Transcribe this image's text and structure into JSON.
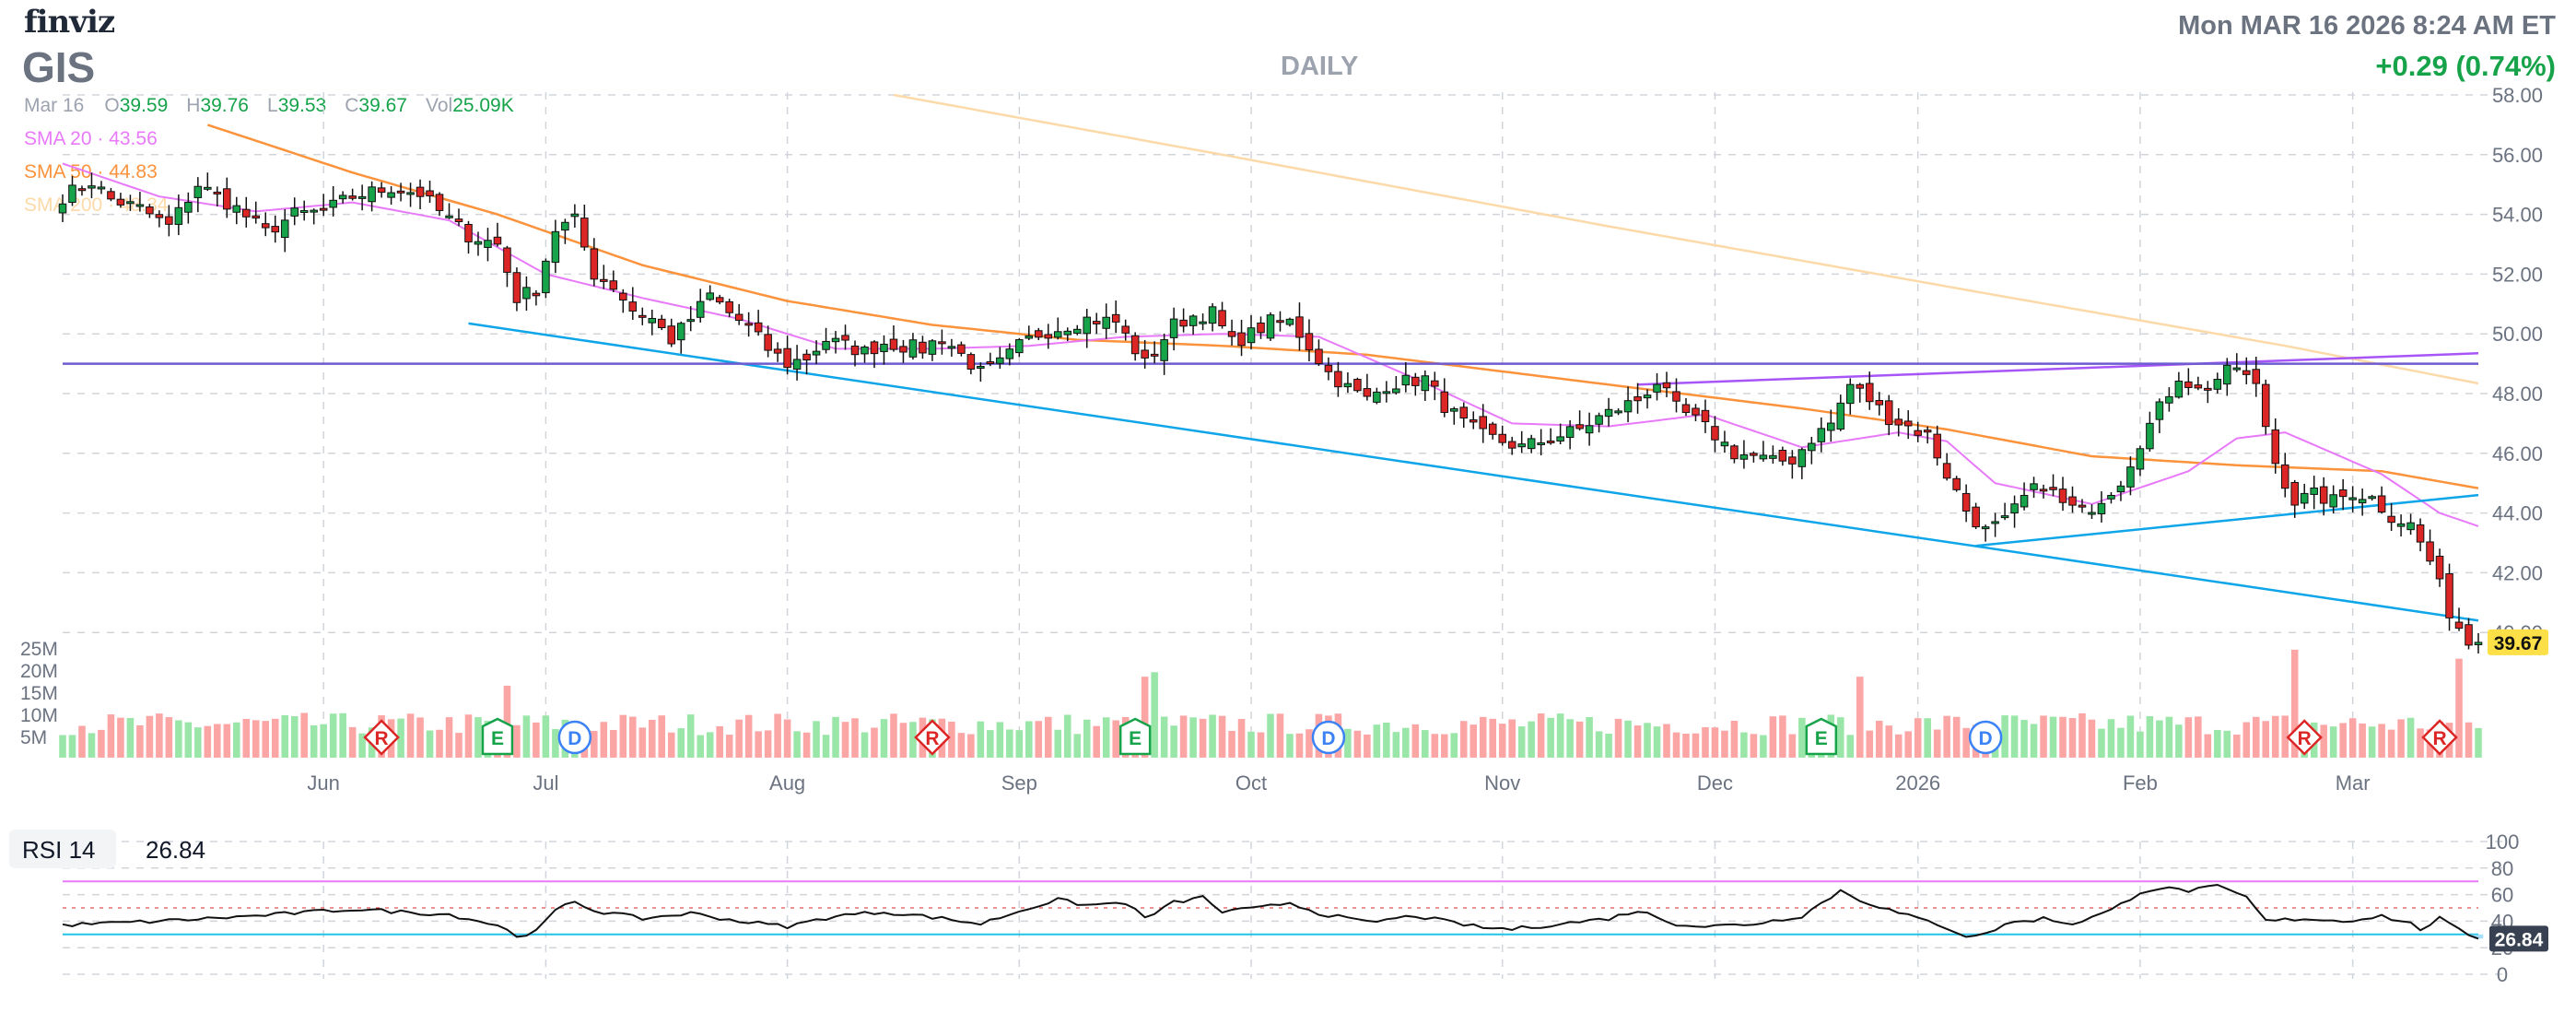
{
  "header": {
    "logo": "finviz",
    "ticker": "GIS",
    "timeframe": "DAILY",
    "datetime": "Mon MAR 16 2026 8:24 AM ET",
    "change": "+0.29 (0.74%)"
  },
  "ohlc": {
    "date": "Mar 16",
    "open_label": "O",
    "open": "39.59",
    "high_label": "H",
    "high": "39.76",
    "low_label": "L",
    "low": "39.53",
    "close_label": "C",
    "close": "39.67",
    "volume_label": "Vol",
    "volume": "25.09K"
  },
  "sma_legend": [
    {
      "label": "SMA 20 · 43.56",
      "color": "#e879f9"
    },
    {
      "label": "SMA 50 · 44.83",
      "color": "#fb923c"
    },
    {
      "label": "SMA 200 · 48.34",
      "color": "#fcd9a8"
    }
  ],
  "colors": {
    "up": "#16a34a",
    "down": "#dc2626",
    "vol_up": "#9ae6a8",
    "vol_down": "#fca5a5",
    "grid": "#d1d5db",
    "trendline_blue": "#0ea5e9",
    "trendline_purple": "#a855f7",
    "hline": "#6d5bd0",
    "rsi_line": "#111111",
    "rsi_upper": "#e879f9",
    "rsi_lower": "#22c3e6"
  },
  "chart_data": {
    "type": "candlestick",
    "price_axis": {
      "min": 38,
      "max": 58,
      "ticks": [
        "58.00",
        "56.00",
        "54.00",
        "52.00",
        "50.00",
        "48.00",
        "46.00",
        "44.00",
        "42.00",
        "40.00"
      ]
    },
    "last_price_label": "39.67",
    "volume_axis": {
      "ticks": [
        "25M",
        "20M",
        "15M",
        "10M",
        "5M"
      ]
    },
    "x_labels": [
      {
        "label": "Jun",
        "index": 27
      },
      {
        "label": "Jul",
        "index": 50
      },
      {
        "label": "Aug",
        "index": 75
      },
      {
        "label": "Sep",
        "index": 99
      },
      {
        "label": "Oct",
        "index": 123
      },
      {
        "label": "Nov",
        "index": 149
      },
      {
        "label": "Dec",
        "index": 171
      },
      {
        "label": "2026",
        "index": 192
      },
      {
        "label": "Feb",
        "index": 215
      },
      {
        "label": "Mar",
        "index": 237
      }
    ],
    "events": [
      {
        "type": "R",
        "index": 33
      },
      {
        "type": "E",
        "index": 45
      },
      {
        "type": "D",
        "index": 53
      },
      {
        "type": "R",
        "index": 90
      },
      {
        "type": "E",
        "index": 111
      },
      {
        "type": "D",
        "index": 131
      },
      {
        "type": "E",
        "index": 182
      },
      {
        "type": "D",
        "index": 199
      },
      {
        "type": "R",
        "index": 232
      },
      {
        "type": "R",
        "index": 246
      }
    ],
    "price_keypoints": [
      [
        0,
        54.6
      ],
      [
        3,
        55.1
      ],
      [
        5,
        54.5
      ],
      [
        8,
        54.2
      ],
      [
        11,
        53.6
      ],
      [
        14,
        55.0
      ],
      [
        18,
        54.2
      ],
      [
        21,
        53.4
      ],
      [
        24,
        54.0
      ],
      [
        27,
        54.1
      ],
      [
        30,
        54.6
      ],
      [
        34,
        54.9
      ],
      [
        37,
        54.7
      ],
      [
        39,
        54.1
      ],
      [
        42,
        53.3
      ],
      [
        45,
        53.0
      ],
      [
        47,
        51.2
      ],
      [
        49,
        51.5
      ],
      [
        51,
        53.5
      ],
      [
        53,
        53.8
      ],
      [
        55,
        52.0
      ],
      [
        57,
        51.6
      ],
      [
        59,
        50.8
      ],
      [
        61,
        50.5
      ],
      [
        63,
        49.8
      ],
      [
        65,
        50.5
      ],
      [
        67,
        51.3
      ],
      [
        69,
        50.7
      ],
      [
        71,
        50.2
      ],
      [
        73,
        49.5
      ],
      [
        75,
        49.0
      ],
      [
        77,
        49.2
      ],
      [
        79,
        49.8
      ],
      [
        81,
        49.6
      ],
      [
        83,
        49.4
      ],
      [
        85,
        49.7
      ],
      [
        87,
        49.6
      ],
      [
        89,
        49.5
      ],
      [
        91,
        49.9
      ],
      [
        93,
        49.3
      ],
      [
        95,
        48.7
      ],
      [
        97,
        49.0
      ],
      [
        99,
        49.6
      ],
      [
        101,
        50.0
      ],
      [
        103,
        50.2
      ],
      [
        106,
        50.5
      ],
      [
        109,
        50.4
      ],
      [
        112,
        49.0
      ],
      [
        115,
        50.3
      ],
      [
        117,
        50.6
      ],
      [
        119,
        50.7
      ],
      [
        121,
        49.7
      ],
      [
        123,
        50.0
      ],
      [
        125,
        50.4
      ],
      [
        127,
        50.4
      ],
      [
        129,
        49.6
      ],
      [
        131,
        48.7
      ],
      [
        133,
        48.2
      ],
      [
        135,
        47.8
      ],
      [
        137,
        48.3
      ],
      [
        139,
        48.4
      ],
      [
        141,
        48.5
      ],
      [
        143,
        47.6
      ],
      [
        145,
        47.0
      ],
      [
        147,
        46.6
      ],
      [
        149,
        46.4
      ],
      [
        151,
        46.2
      ],
      [
        153,
        46.4
      ],
      [
        155,
        46.6
      ],
      [
        157,
        46.8
      ],
      [
        159,
        47.2
      ],
      [
        161,
        47.5
      ],
      [
        163,
        47.8
      ],
      [
        165,
        48.4
      ],
      [
        167,
        47.5
      ],
      [
        169,
        47.1
      ],
      [
        171,
        46.6
      ],
      [
        173,
        46.0
      ],
      [
        175,
        45.9
      ],
      [
        177,
        45.7
      ],
      [
        179,
        45.8
      ],
      [
        181,
        46.5
      ],
      [
        183,
        47.0
      ],
      [
        185,
        48.3
      ],
      [
        187,
        47.8
      ],
      [
        189,
        47.2
      ],
      [
        191,
        46.9
      ],
      [
        193,
        46.6
      ],
      [
        195,
        45.3
      ],
      [
        197,
        44.1
      ],
      [
        199,
        43.4
      ],
      [
        201,
        43.7
      ],
      [
        203,
        44.5
      ],
      [
        205,
        45.0
      ],
      [
        207,
        44.3
      ],
      [
        209,
        44.0
      ],
      [
        211,
        44.5
      ],
      [
        213,
        45.1
      ],
      [
        215,
        46.4
      ],
      [
        217,
        47.5
      ],
      [
        219,
        48.6
      ],
      [
        221,
        48.1
      ],
      [
        223,
        48.5
      ],
      [
        225,
        48.9
      ],
      [
        227,
        48.2
      ],
      [
        229,
        45.7
      ],
      [
        231,
        44.4
      ],
      [
        233,
        44.6
      ],
      [
        235,
        44.4
      ],
      [
        237,
        44.7
      ],
      [
        239,
        44.5
      ],
      [
        241,
        43.9
      ],
      [
        243,
        43.6
      ],
      [
        245,
        42.4
      ],
      [
        247,
        40.7
      ],
      [
        249,
        39.67
      ]
    ],
    "sma20_keypoints": [
      [
        0,
        55.7
      ],
      [
        10,
        54.6
      ],
      [
        20,
        54.1
      ],
      [
        30,
        54.4
      ],
      [
        40,
        53.8
      ],
      [
        50,
        52.0
      ],
      [
        60,
        51.2
      ],
      [
        70,
        50.5
      ],
      [
        80,
        49.5
      ],
      [
        90,
        49.5
      ],
      [
        100,
        49.6
      ],
      [
        110,
        49.9
      ],
      [
        120,
        50.0
      ],
      [
        130,
        49.9
      ],
      [
        140,
        48.5
      ],
      [
        150,
        47.0
      ],
      [
        160,
        46.9
      ],
      [
        170,
        47.3
      ],
      [
        180,
        46.2
      ],
      [
        190,
        46.7
      ],
      [
        195,
        46.4
      ],
      [
        200,
        45.0
      ],
      [
        210,
        44.3
      ],
      [
        220,
        45.4
      ],
      [
        225,
        46.5
      ],
      [
        230,
        46.7
      ],
      [
        240,
        45.3
      ],
      [
        246,
        44.0
      ],
      [
        250,
        43.56
      ]
    ],
    "sma50_keypoints": [
      [
        15,
        57.0
      ],
      [
        30,
        55.4
      ],
      [
        45,
        54.0
      ],
      [
        60,
        52.3
      ],
      [
        75,
        51.1
      ],
      [
        90,
        50.3
      ],
      [
        105,
        49.8
      ],
      [
        120,
        49.6
      ],
      [
        135,
        49.3
      ],
      [
        150,
        48.7
      ],
      [
        165,
        48.1
      ],
      [
        180,
        47.5
      ],
      [
        195,
        46.8
      ],
      [
        210,
        45.9
      ],
      [
        225,
        45.6
      ],
      [
        240,
        45.4
      ],
      [
        250,
        44.83
      ]
    ],
    "sma200_keypoints": [
      [
        86,
        58.0
      ],
      [
        120,
        56.0
      ],
      [
        160,
        53.6
      ],
      [
        200,
        51.3
      ],
      [
        230,
        49.6
      ],
      [
        250,
        48.34
      ]
    ],
    "trendlines": [
      {
        "name": "lower-channel",
        "from": [
          42,
          50.35
        ],
        "to": [
          250,
          40.4
        ],
        "color": "#0ea5e9"
      },
      {
        "name": "support-rising",
        "from": [
          198,
          42.9
        ],
        "to": [
          250,
          44.6
        ],
        "color": "#0ea5e9"
      },
      {
        "name": "resistance-rising",
        "from": [
          163,
          48.3
        ],
        "to": [
          250,
          49.35
        ],
        "color": "#a855f7"
      },
      {
        "name": "horizontal",
        "from": [
          0,
          49.0
        ],
        "to": [
          250,
          49.0
        ],
        "color": "#6d5bd0"
      }
    ],
    "volume_spikes": [
      [
        46,
        16
      ],
      [
        112,
        18
      ],
      [
        113,
        19
      ],
      [
        186,
        18
      ],
      [
        231,
        24
      ],
      [
        248,
        22
      ]
    ],
    "rsi": {
      "label": "RSI 14",
      "value": "26.84",
      "axis_ticks": [
        "100",
        "80",
        "60",
        "40",
        "20",
        "0"
      ],
      "overbought": 70,
      "oversold": 30,
      "keypoints": [
        [
          0,
          37
        ],
        [
          10,
          40
        ],
        [
          20,
          44
        ],
        [
          30,
          49
        ],
        [
          40,
          45
        ],
        [
          45,
          37
        ],
        [
          47,
          29
        ],
        [
          49,
          32
        ],
        [
          51,
          48
        ],
        [
          53,
          55
        ],
        [
          55,
          48
        ],
        [
          60,
          42
        ],
        [
          65,
          46
        ],
        [
          70,
          40
        ],
        [
          75,
          36
        ],
        [
          80,
          44
        ],
        [
          85,
          47
        ],
        [
          90,
          43
        ],
        [
          95,
          38
        ],
        [
          100,
          50
        ],
        [
          103,
          56
        ],
        [
          106,
          52
        ],
        [
          110,
          54
        ],
        [
          112,
          42
        ],
        [
          115,
          54
        ],
        [
          118,
          58
        ],
        [
          120,
          47
        ],
        [
          124,
          50
        ],
        [
          127,
          54
        ],
        [
          130,
          46
        ],
        [
          135,
          39
        ],
        [
          140,
          44
        ],
        [
          143,
          40
        ],
        [
          147,
          35
        ],
        [
          150,
          34
        ],
        [
          155,
          38
        ],
        [
          160,
          42
        ],
        [
          163,
          48
        ],
        [
          167,
          38
        ],
        [
          170,
          36
        ],
        [
          175,
          38
        ],
        [
          180,
          44
        ],
        [
          184,
          63
        ],
        [
          186,
          56
        ],
        [
          190,
          46
        ],
        [
          194,
          38
        ],
        [
          197,
          29
        ],
        [
          199,
          30
        ],
        [
          201,
          38
        ],
        [
          205,
          42
        ],
        [
          208,
          38
        ],
        [
          212,
          48
        ],
        [
          215,
          62
        ],
        [
          217,
          65
        ],
        [
          220,
          63
        ],
        [
          223,
          66
        ],
        [
          226,
          58
        ],
        [
          228,
          40
        ],
        [
          232,
          42
        ],
        [
          236,
          40
        ],
        [
          240,
          44
        ],
        [
          243,
          38
        ],
        [
          244,
          34
        ],
        [
          246,
          42
        ],
        [
          248,
          33
        ],
        [
          250,
          26.84
        ]
      ]
    }
  }
}
